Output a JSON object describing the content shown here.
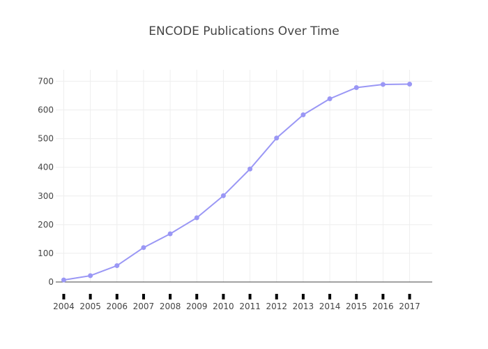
{
  "chart_data": {
    "type": "line",
    "title": "ENCODE Publications Over Time",
    "xlabel": "",
    "ylabel": "",
    "x": [
      2004,
      2005,
      2006,
      2007,
      2008,
      2009,
      2010,
      2011,
      2012,
      2013,
      2014,
      2015,
      2016,
      2017
    ],
    "x_tick_labels": [
      "2004",
      "2005",
      "2006",
      "2007",
      "2008",
      "2009",
      "2010",
      "2011",
      "2012",
      "2013",
      "2014",
      "2015",
      "2016",
      "2017"
    ],
    "series": [
      {
        "values": [
          7,
          22,
          57,
          120,
          168,
          224,
          301,
          394,
          502,
          583,
          639,
          678,
          689,
          690
        ],
        "color": "#9a97f5"
      }
    ],
    "xlim": [
      2003.7,
      2017.85
    ],
    "ylim": [
      0,
      740
    ],
    "y_ticks": [
      0,
      100,
      200,
      300,
      400,
      500,
      600,
      700
    ],
    "y_tick_labels": [
      "0",
      "100",
      "200",
      "300",
      "400",
      "500",
      "600",
      "700"
    ],
    "grid": true,
    "legend": "none",
    "colors": {
      "line": "#9a97f5",
      "grid": "#eeeeee",
      "zero_line": "#444444",
      "text": "#444444",
      "tick_marks": "#000000"
    }
  }
}
